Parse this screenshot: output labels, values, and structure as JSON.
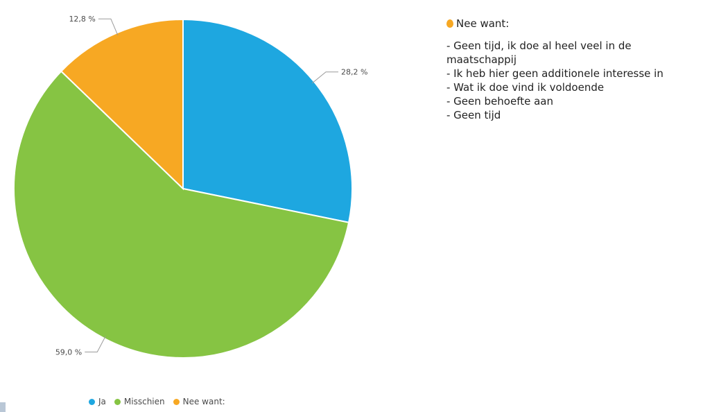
{
  "colors": {
    "ja": "#1ea7e0",
    "misschien": "#86c443",
    "nee": "#f7a823"
  },
  "chart_data": {
    "type": "pie",
    "title": "",
    "slices": [
      {
        "label": "Ja",
        "value": 28.2,
        "display": "28,2 %",
        "color": "#1ea7e0"
      },
      {
        "label": "Misschien",
        "value": 59.0,
        "display": "59,0 %",
        "color": "#86c443"
      },
      {
        "label": "Nee want:",
        "value": 12.8,
        "display": "12,8 %",
        "color": "#f7a823"
      }
    ],
    "legend_position": "bottom"
  },
  "legend": {
    "items": [
      {
        "label": "Ja",
        "color": "#1ea7e0"
      },
      {
        "label": "Misschien",
        "color": "#86c443"
      },
      {
        "label": "Nee want:",
        "color": "#f7a823"
      }
    ]
  },
  "note": {
    "title": "Nee want:",
    "icon": "orange-bullet-icon",
    "lines": [
      "- Geen tijd, ik doe al heel veel in de maatschappij",
      "- Ik heb hier geen additionele interesse in",
      "- Wat ik doe vind ik voldoende",
      "- Geen behoefte aan",
      "- Geen tijd"
    ]
  }
}
